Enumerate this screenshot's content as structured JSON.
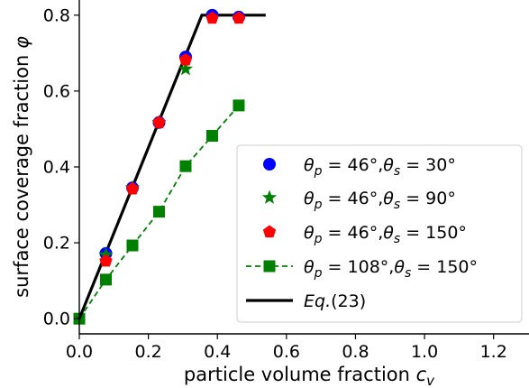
{
  "chart_data": {
    "type": "line",
    "xlabel": "particle volume fraction",
    "xlabel_symbol": "c",
    "xlabel_sub": "v",
    "ylabel": "surface coverage fraction",
    "ylabel_symbol": "φ",
    "xlim": [
      0.0,
      1.3
    ],
    "ylim": [
      -0.04,
      0.84
    ],
    "xticks": [
      "0.0",
      "0.2",
      "0.4",
      "0.6",
      "0.8",
      "1.0",
      "1.2"
    ],
    "yticks": [
      "0.0",
      "0.2",
      "0.4",
      "0.6",
      "0.8"
    ],
    "xtick_values": [
      0.0,
      0.2,
      0.4,
      0.6,
      0.8,
      1.0,
      1.2
    ],
    "ytick_values": [
      0.0,
      0.2,
      0.4,
      0.6,
      0.8
    ],
    "grid": false,
    "legend_position": "lower-right",
    "series": [
      {
        "name": "θp = 46°, θs = 30°",
        "marker": "circle",
        "line": "none",
        "color": "#0000ff",
        "x": [
          0.077,
          0.154,
          0.231,
          0.308,
          0.385,
          0.462
        ],
        "y": [
          0.172,
          0.345,
          0.517,
          0.69,
          0.8,
          0.795
        ]
      },
      {
        "name": "θp = 46°, θs = 90°",
        "marker": "star",
        "line": "none",
        "color": "#008000",
        "x": [
          0.077,
          0.154,
          0.231,
          0.308
        ],
        "y": [
          0.168,
          0.345,
          0.517,
          0.658
        ]
      },
      {
        "name": "θp = 46°, θs = 150°",
        "marker": "pentagon",
        "line": "none",
        "color": "#ff0000",
        "x": [
          0.077,
          0.154,
          0.231,
          0.308,
          0.385,
          0.462
        ],
        "y": [
          0.152,
          0.342,
          0.517,
          0.682,
          0.792,
          0.792
        ]
      },
      {
        "name": "θp = 108°, θs = 150°",
        "marker": "square",
        "line": "dashed",
        "color": "#008000",
        "x": [
          0.0,
          0.077,
          0.154,
          0.231,
          0.308,
          0.385,
          0.462
        ],
        "y": [
          0.0,
          0.103,
          0.193,
          0.282,
          0.402,
          0.482,
          0.562
        ]
      },
      {
        "name": "Eq. (23)",
        "marker": "none",
        "line": "solid",
        "color": "#000000",
        "x": [
          0.0,
          0.355,
          0.54
        ],
        "y": [
          0.0,
          0.8,
          0.8
        ]
      }
    ],
    "legend": [
      {
        "prefix": "θ",
        "sub1": "p",
        "mid": " = 46°,θ",
        "sub2": "s",
        "suffix": " = 30°"
      },
      {
        "prefix": "θ",
        "sub1": "p",
        "mid": " = 46°,θ",
        "sub2": "s",
        "suffix": " = 90°"
      },
      {
        "prefix": "θ",
        "sub1": "p",
        "mid": " = 46°,θ",
        "sub2": "s",
        "suffix": " = 150°"
      },
      {
        "prefix": "θ",
        "sub1": "p",
        "mid": " = 108°,θ",
        "sub2": "s",
        "suffix": " = 150°"
      },
      {
        "eq": "Eq.",
        "rest": "(23)"
      }
    ]
  }
}
